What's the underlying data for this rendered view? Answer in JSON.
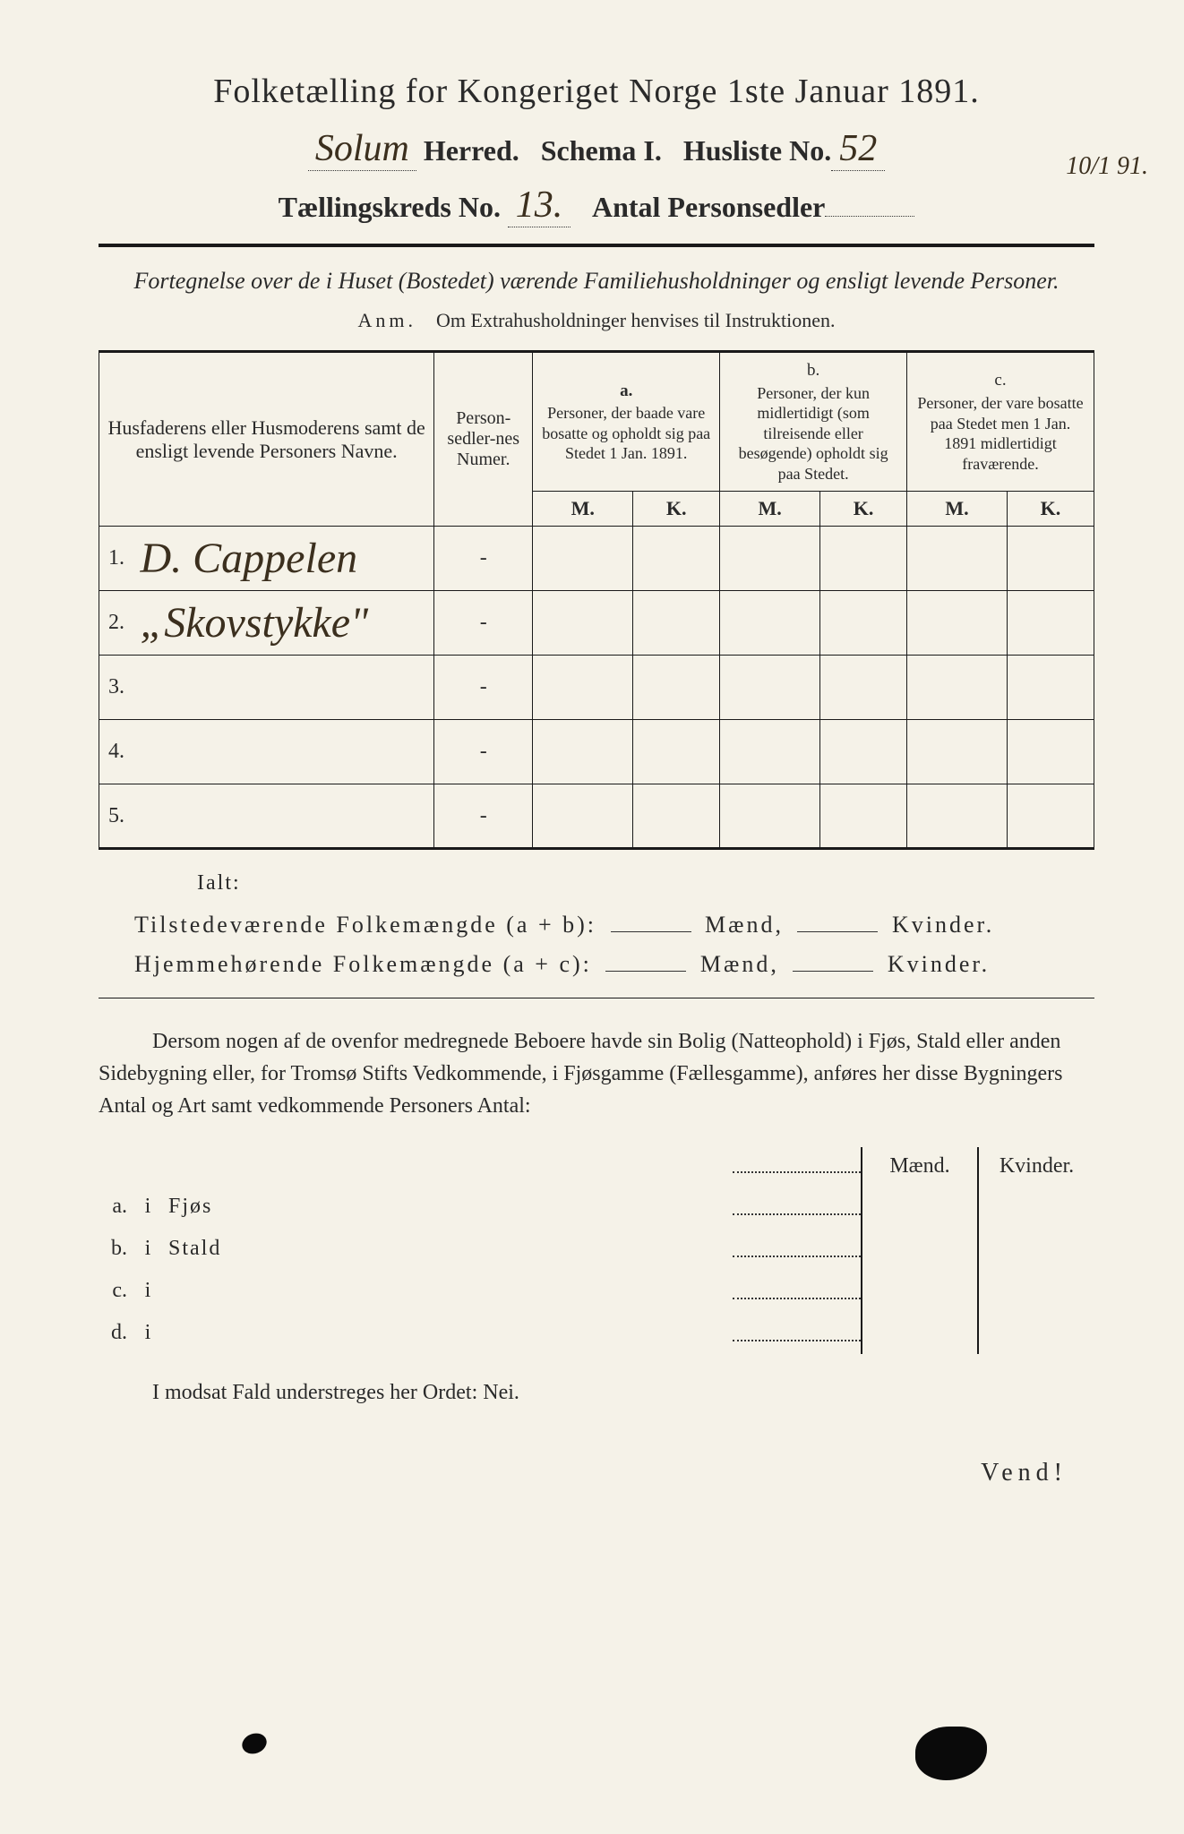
{
  "title": "Folketælling for Kongeriget Norge 1ste Januar 1891.",
  "header": {
    "herred_handwritten": "Solum",
    "herred_label": "Herred.",
    "schema_label": "Schema I.",
    "husliste_label": "Husliste No.",
    "husliste_no": "52",
    "kreds_label": "Tællingskreds No.",
    "kreds_no": "13.",
    "antal_label": "Antal Personsedler",
    "antal_value": ""
  },
  "margin_note": "10/1 91.",
  "subtitle": "Fortegnelse over de i Huset (Bostedet) værende Familiehusholdninger og ensligt levende Personer.",
  "anm": {
    "label": "Anm.",
    "text": "Om Extrahusholdninger henvises til Instruktionen."
  },
  "table": {
    "col_names": "Husfaderens eller Husmoderens samt de ensligt levende Personers Navne.",
    "col_numer": "Person-sedler-nes Numer.",
    "group_a_letter": "a.",
    "group_a": "Personer, der baade vare bosatte og opholdt sig paa Stedet 1 Jan. 1891.",
    "group_b_letter": "b.",
    "group_b": "Personer, der kun midlertidigt (som tilreisende eller besøgende) opholdt sig paa Stedet.",
    "group_c_letter": "c.",
    "group_c": "Personer, der vare bosatte paa Stedet men 1 Jan. 1891 midlertidigt fraværende.",
    "mk_m": "M.",
    "mk_k": "K.",
    "rows": [
      {
        "num": "1.",
        "name": "D. Cappelen"
      },
      {
        "num": "2.",
        "name": "„Skovstykke\""
      },
      {
        "num": "3.",
        "name": ""
      },
      {
        "num": "4.",
        "name": ""
      },
      {
        "num": "5.",
        "name": ""
      }
    ]
  },
  "totals": {
    "ialt": "Ialt:",
    "line1_label": "Tilstedeværende Folkemængde (a + b):",
    "line2_label": "Hjemmehørende Folkemængde (a + c):",
    "maend": "Mænd,",
    "kvinder": "Kvinder."
  },
  "paragraph": "Dersom nogen af de ovenfor medregnede Beboere havde sin Bolig (Natteophold) i Fjøs, Stald eller anden Sidebygning eller, for Tromsø Stifts Vedkommende, i Fjøsgamme (Fællesgamme), anføres her disse Bygningers Antal og Art samt vedkommende Personers Antal:",
  "outbuildings": {
    "maend": "Mænd.",
    "kvinder": "Kvinder.",
    "rows": [
      {
        "label": "a.",
        "i": "i",
        "type": "Fjøs"
      },
      {
        "label": "b.",
        "i": "i",
        "type": "Stald"
      },
      {
        "label": "c.",
        "i": "i",
        "type": ""
      },
      {
        "label": "d.",
        "i": "i",
        "type": ""
      }
    ]
  },
  "nei_line": "I modsat Fald understreges her Ordet: Nei.",
  "vend": "Vend!",
  "colors": {
    "paper": "#f5f2e8",
    "ink": "#2a2a2a",
    "handwriting": "#3b2f1e"
  }
}
